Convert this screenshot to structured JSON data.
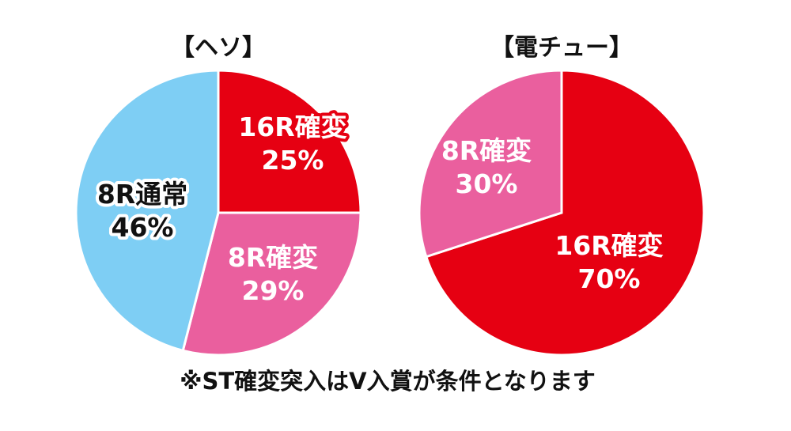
{
  "colors": {
    "red": "#e60012",
    "pink": "#ea5f9e",
    "blue": "#7ecef4",
    "text": "#111111"
  },
  "chart_data": [
    {
      "type": "pie",
      "title": "【ヘソ】",
      "slices": [
        {
          "label": "16R確変",
          "value": 25,
          "value_label": "25%",
          "color": "#e60012",
          "text_color": "#ffffff",
          "outline": "#e60012"
        },
        {
          "label": "8R確変",
          "value": 29,
          "value_label": "29%",
          "color": "#ea5f9e",
          "text_color": "#ffffff",
          "outline": "#ea5f9e"
        },
        {
          "label": "8R通常",
          "value": 46,
          "value_label": "46%",
          "color": "#7ecef4",
          "text_color": "#111111",
          "outline": "#ffffff"
        }
      ]
    },
    {
      "type": "pie",
      "title": "【電チュー】",
      "slices": [
        {
          "label": "16R確変",
          "value": 70,
          "value_label": "70%",
          "color": "#e60012",
          "text_color": "#ffffff",
          "outline": "#e60012"
        },
        {
          "label": "8R確変",
          "value": 30,
          "value_label": "30%",
          "color": "#ea5f9e",
          "text_color": "#ffffff",
          "outline": "#ea5f9e"
        }
      ]
    }
  ],
  "footnote": "※ST確変突入はV入賞が条件となります"
}
